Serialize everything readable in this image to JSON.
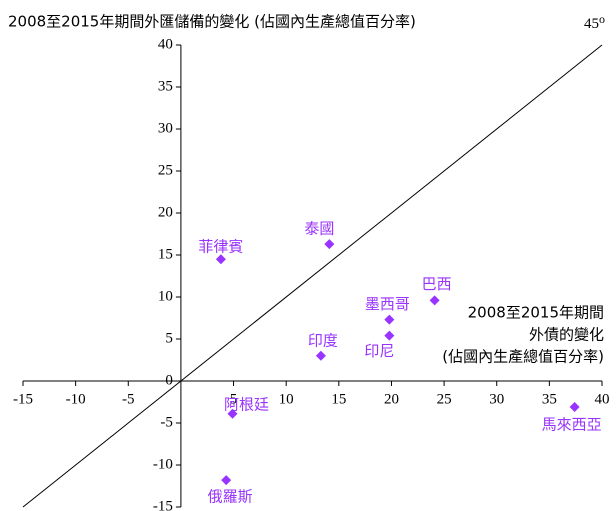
{
  "chart_data": {
    "type": "scatter",
    "title": "2008至2015年期間外匯儲備的變化 (佔國內生產總值百分率)",
    "x_label": [
      "2008至2015年期間",
      "外債的變化",
      "(佔國內生產總值百分率)"
    ],
    "annotation": {
      "text": "45",
      "sup": "o"
    },
    "xlim": [
      -15,
      40
    ],
    "ylim": [
      -15,
      40
    ],
    "xticks": [
      -15,
      -10,
      -5,
      5,
      10,
      15,
      20,
      25,
      30,
      35,
      40
    ],
    "yticks": [
      -15,
      -10,
      -5,
      0,
      5,
      10,
      15,
      20,
      25,
      30,
      35,
      40
    ],
    "color": "#9933ff",
    "series": [
      {
        "name": null,
        "color": "#9933ff",
        "labels": [
          "菲律賓",
          "泰國",
          "巴西",
          "墨西哥",
          "印尼",
          "印度",
          "阿根廷",
          "俄羅斯",
          "馬來西亞"
        ],
        "x": [
          3.8,
          14.1,
          24.1,
          19.8,
          19.8,
          13.3,
          4.9,
          4.3,
          37.4
        ],
        "values": [
          14.5,
          16.3,
          9.6,
          7.3,
          5.4,
          3.0,
          -3.9,
          -11.8,
          -3.1
        ]
      }
    ]
  }
}
